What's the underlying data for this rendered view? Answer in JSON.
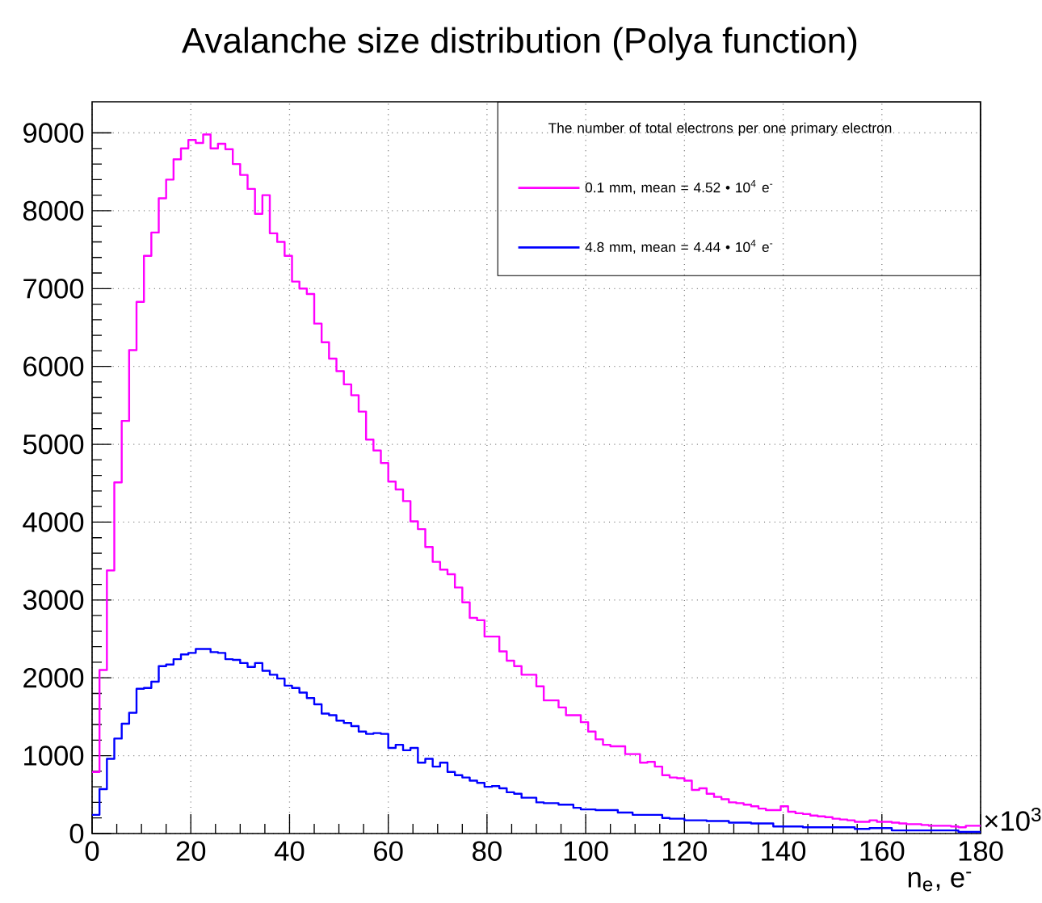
{
  "chart_data": {
    "type": "histogram",
    "title": "Avalanche size distribution (Polya function)",
    "xlabel": "n$_{e}$, e$^{-}$",
    "legend_title": "The number of total electrons per one primary electron",
    "annotations": [
      "×10$^{3}$"
    ],
    "bins": [
      0,
      1.5,
      3,
      4.5,
      6,
      7.5,
      9,
      10.5,
      12,
      13.5,
      15,
      16.5,
      18,
      19.5,
      21,
      22.5,
      24,
      25.5,
      27,
      28.5,
      30,
      31.5,
      33,
      34.5,
      36,
      37.5,
      39,
      40.5,
      42,
      43.5,
      45,
      46.5,
      48,
      49.5,
      51,
      52.5,
      54,
      55.5,
      57,
      58.5,
      60,
      61.5,
      63,
      64.5,
      66,
      67.5,
      69,
      70.5,
      72,
      73.5,
      75,
      76.5,
      78,
      79.5,
      81,
      82.5,
      84,
      85.5,
      87,
      88.5,
      90,
      91.5,
      93,
      94.5,
      96,
      97.5,
      99,
      100.5,
      102,
      103.5,
      105,
      106.5,
      108,
      109.5,
      111,
      112.5,
      114,
      115.5,
      117,
      118.5,
      120,
      121.5,
      123,
      124.5,
      126,
      127.5,
      129,
      130.5,
      132,
      133.5,
      135,
      136.5,
      138,
      139.5,
      141,
      142.5,
      144,
      145.5,
      147,
      148.5,
      150,
      151.5,
      153,
      154.5,
      156,
      157.5,
      159,
      160.5,
      162,
      163.5,
      165,
      166.5,
      168,
      169.5,
      171,
      172.5,
      174,
      175.5,
      177,
      178.5,
      180
    ],
    "series": [
      {
        "name": "0.1 mm, mean = 4.52 • 10$^{4}$ e$^{-}$",
        "color": "#ff00ff",
        "values": [
          790,
          2100,
          3380,
          4510,
          5300,
          6210,
          6830,
          7420,
          7720,
          8160,
          8400,
          8660,
          8800,
          8910,
          8870,
          8980,
          8800,
          8860,
          8790,
          8600,
          8460,
          8280,
          7960,
          8200,
          7710,
          7600,
          7420,
          7090,
          7000,
          6930,
          6550,
          6310,
          6100,
          5940,
          5770,
          5630,
          5420,
          5060,
          4920,
          4760,
          4520,
          4420,
          4270,
          4010,
          3910,
          3680,
          3490,
          3390,
          3330,
          3160,
          2970,
          2770,
          2740,
          2530,
          2530,
          2340,
          2220,
          2150,
          2040,
          2040,
          1890,
          1710,
          1710,
          1620,
          1520,
          1520,
          1430,
          1310,
          1210,
          1140,
          1120,
          1120,
          1020,
          1020,
          910,
          920,
          860,
          750,
          720,
          710,
          680,
          560,
          580,
          510,
          470,
          440,
          400,
          390,
          370,
          350,
          320,
          300,
          300,
          350,
          280,
          260,
          250,
          230,
          220,
          210,
          190,
          180,
          170,
          150,
          150,
          170,
          150,
          150,
          140,
          130,
          120,
          120,
          110,
          100,
          100,
          100,
          90,
          80,
          100,
          100
        ]
      },
      {
        "name": "4.8 mm, mean = 4.44 • 10$^{4}$ e$^{-}$",
        "color": "#0000ff",
        "values": [
          240,
          570,
          960,
          1220,
          1410,
          1550,
          1860,
          1870,
          1950,
          2150,
          2170,
          2240,
          2300,
          2320,
          2370,
          2370,
          2330,
          2320,
          2240,
          2230,
          2190,
          2140,
          2190,
          2090,
          2040,
          1990,
          1900,
          1870,
          1810,
          1740,
          1660,
          1540,
          1520,
          1450,
          1420,
          1380,
          1310,
          1280,
          1290,
          1280,
          1100,
          1140,
          1070,
          1100,
          910,
          960,
          860,
          910,
          790,
          750,
          720,
          680,
          650,
          600,
          610,
          580,
          530,
          510,
          460,
          460,
          400,
          390,
          390,
          370,
          370,
          330,
          310,
          310,
          300,
          300,
          300,
          270,
          270,
          240,
          240,
          240,
          240,
          200,
          190,
          190,
          170,
          170,
          170,
          160,
          160,
          160,
          140,
          140,
          140,
          130,
          130,
          130,
          90,
          90,
          90,
          90,
          80,
          80,
          80,
          80,
          80,
          80,
          80,
          60,
          60,
          70,
          70,
          70,
          40,
          40,
          40,
          40,
          40,
          40,
          40,
          40,
          40,
          20,
          20,
          20
        ]
      }
    ],
    "xlim": [
      0,
      180
    ],
    "ylim": [
      0,
      9400
    ],
    "xticks": [
      0,
      20,
      40,
      60,
      80,
      100,
      120,
      140,
      160,
      180
    ],
    "yticks": [
      0,
      1000,
      2000,
      3000,
      4000,
      5000,
      6000,
      7000,
      8000,
      9000
    ],
    "grid": true,
    "legend": "top right"
  }
}
